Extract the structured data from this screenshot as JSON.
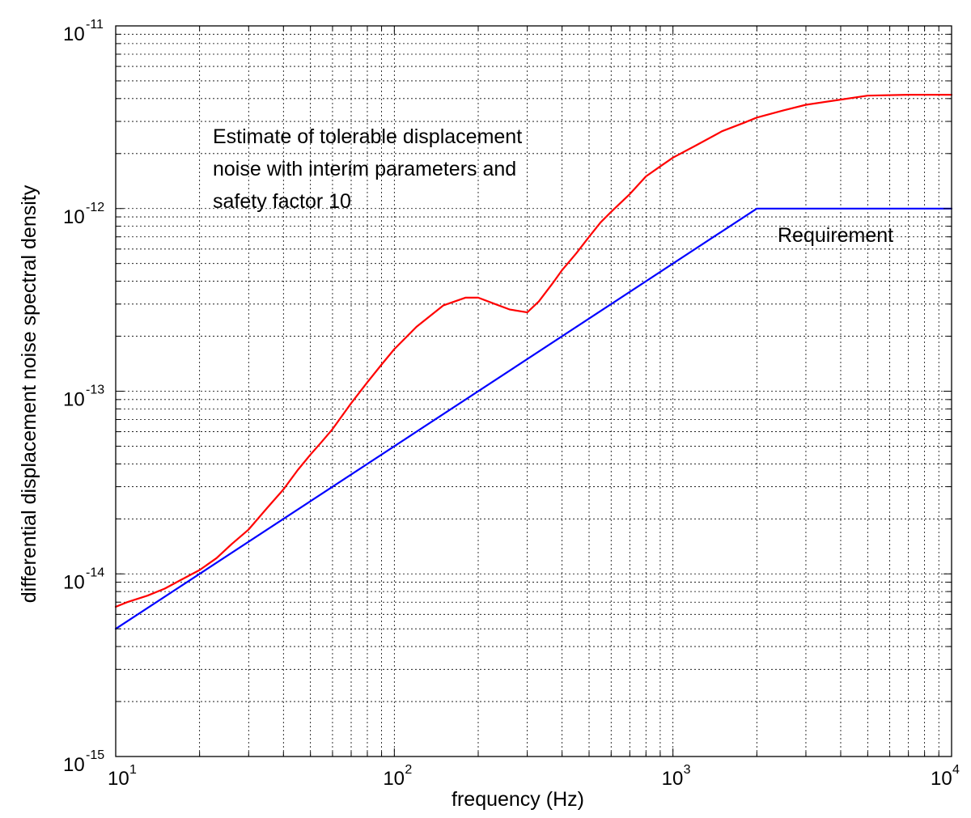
{
  "chart_data": {
    "type": "line",
    "title": "",
    "xlabel": "frequency (Hz)",
    "ylabel": "differential displacement noise spectral density",
    "xscale": "log",
    "yscale": "log",
    "xlim": [
      10,
      10000
    ],
    "ylim": [
      1e-15,
      1e-11
    ],
    "grid": true,
    "x_ticks": [
      {
        "base": "10",
        "exp": "1"
      },
      {
        "base": "10",
        "exp": "2"
      },
      {
        "base": "10",
        "exp": "3"
      },
      {
        "base": "10",
        "exp": "4"
      }
    ],
    "y_ticks": [
      {
        "base": "10",
        "exp": "-15"
      },
      {
        "base": "10",
        "exp": "-14"
      },
      {
        "base": "10",
        "exp": "-13"
      },
      {
        "base": "10",
        "exp": "-12"
      },
      {
        "base": "10",
        "exp": "-11"
      }
    ],
    "annotations": [
      {
        "id": "estimate",
        "lines": [
          "Estimate of tolerable displacement",
          "noise with interim parameters and",
          "safety factor 10"
        ]
      },
      {
        "id": "requirement",
        "lines": [
          "Requirement"
        ]
      }
    ],
    "series": [
      {
        "color": "#ff0000",
        "x": [
          10,
          11,
          13,
          15,
          17,
          20,
          23,
          26,
          30,
          35,
          40,
          45,
          50,
          55,
          60,
          70,
          80,
          90,
          100,
          120,
          150,
          180,
          200,
          230,
          260,
          300,
          330,
          370,
          400,
          450,
          500,
          550,
          600,
          700,
          800,
          900,
          1000,
          1200,
          1500,
          1800,
          2000,
          2500,
          3000,
          4000,
          5000,
          7000,
          10000
        ],
        "y": [
          6.6e-15,
          7e-15,
          7.6e-15,
          8.3e-15,
          9.2e-15,
          1.05e-14,
          1.22e-14,
          1.45e-14,
          1.75e-14,
          2.3e-14,
          2.9e-14,
          3.7e-14,
          4.5e-14,
          5.3e-14,
          6.2e-14,
          8.6e-14,
          1.12e-13,
          1.4e-13,
          1.7e-13,
          2.25e-13,
          2.95e-13,
          3.25e-13,
          3.25e-13,
          3e-13,
          2.8e-13,
          2.7e-13,
          3.1e-13,
          3.9e-13,
          4.6e-13,
          5.7e-13,
          7e-13,
          8.4e-13,
          9.6e-13,
          1.2e-12,
          1.5e-12,
          1.7e-12,
          1.9e-12,
          2.2e-12,
          2.65e-12,
          2.95e-12,
          3.15e-12,
          3.45e-12,
          3.7e-12,
          3.95e-12,
          4.15e-12,
          4.2e-12,
          4.2e-12
        ]
      },
      {
        "color": "#0000ff",
        "x": [
          10,
          2000,
          10000
        ],
        "y": [
          5e-15,
          1e-12,
          1e-12
        ]
      }
    ]
  }
}
